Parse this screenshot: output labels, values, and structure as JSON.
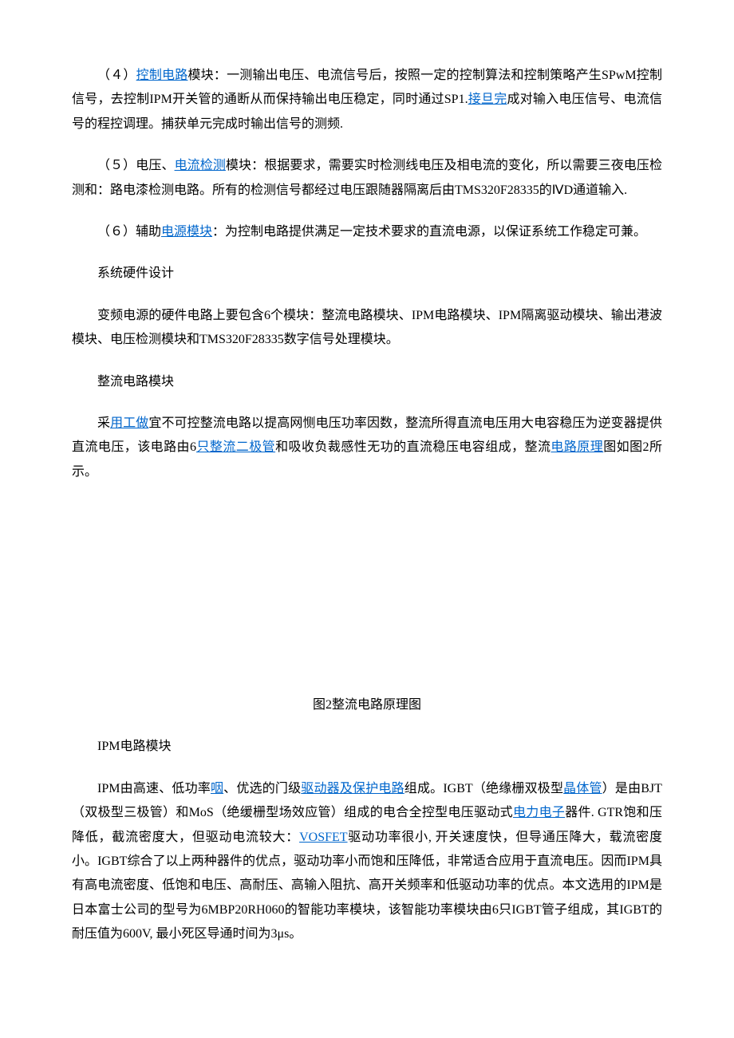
{
  "p1": {
    "t1": "（４）",
    "link1": "控制电路",
    "t2": "模块：一测输出电压、电流信号后，按照一定的控制算法和控制策略产生SPwM控制信号，去控制IPM开关管的通断从而保持输出电压稳定，同时通过SP1.",
    "link2": "接旦完",
    "t3": "成对输入电压信号、电流信号的程控调理。捕获单元完成时输出信号的测频."
  },
  "p2": {
    "t1": "（５）电压、",
    "link1": "电流检测",
    "t2": "模块：根据要求，需要实时检测线电压及相电流的变化，所以需要三夜电压检测和：路电漆检测电路。所有的检测信号都经过电压跟随器隔离后由TMS320F28335的ⅣD通道输入."
  },
  "p3": {
    "t1": "（６）辅助",
    "link1": "电源模块",
    "t2": "：为控制电路提供满足一定技术要求的直流电源，以保证系统工作稳定可兼。"
  },
  "h1": "系统硬件设计",
  "p4": "变频电源的硬件电路上要包含6个模块：整流电路模块、IPM电路模块、IPM隔离驱动模块、输出港波模块、电压检测模块和TMS320F28335数字信号处理模块。",
  "h2": "整流电路模块",
  "p5": {
    "t1": "采",
    "link1": "用工做",
    "t2": "宜不可控整流电路以提高网恻电压功率因数，整流所得直流电压用大电容稳压为逆变器提供直流电压，该电路由6",
    "link2": "只整流二极管",
    "t3": "和吸收负裁感性无功的直流稳压电容组成，整流",
    "link3": "电路原理",
    "t4": "图如图2所示。"
  },
  "figcap": "图2整流电路原理图",
  "h3": "IPM电路模块",
  "p6": {
    "t1": "IPM由高速、低功率",
    "link1": "咽",
    "t2": "、优选的门级",
    "link2": "驱动器及保护电路",
    "t3": "组成。IGBT（绝缘栅双极型",
    "link3": "晶体管",
    "t4": "）是由BJT（双极型三极管）和MoS（绝缓栅型场效应管）组成的电合全控型电压驱动式",
    "link4": "电力电子",
    "t5": "器件. GTR饱和压降低，截流密度大，但驱动电流较大：",
    "link5": "VOSFET",
    "t6": "驱动功率很小, 开关速度快，但导通压降大，载流密度小。IGBT综合了以上两种器件的优点，驱动功率小而饱和压降低，非常适合应用于直流电压。因而IPM具有高电流密度、低饱和电压、高耐压、高输入阻抗、高开关频率和低驱动功率的优点。本文选用的IPM是日本富士公司的型号为6MBP20RH060的智能功率模块，该智能功率模块由6只IGBT管子组成，其IGBT的耐压值为600V, 最小死区导通时间为3μs。"
  }
}
